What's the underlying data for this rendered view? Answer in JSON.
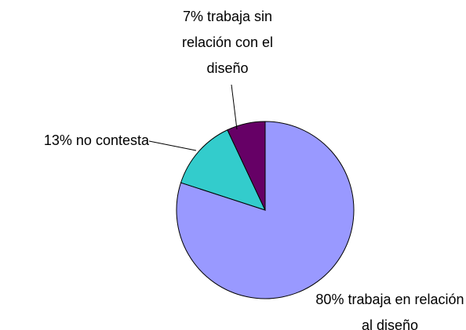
{
  "chart_data": {
    "type": "pie",
    "categories": [
      "trabaja en relación al diseño",
      "no contesta",
      "trabaja sin relación con el diseño"
    ],
    "values": [
      80,
      13,
      7
    ],
    "value_labels": [
      "80%",
      "13%",
      "7%"
    ],
    "colors": [
      "#9999ff",
      "#33cccc",
      "#660066"
    ]
  }
}
